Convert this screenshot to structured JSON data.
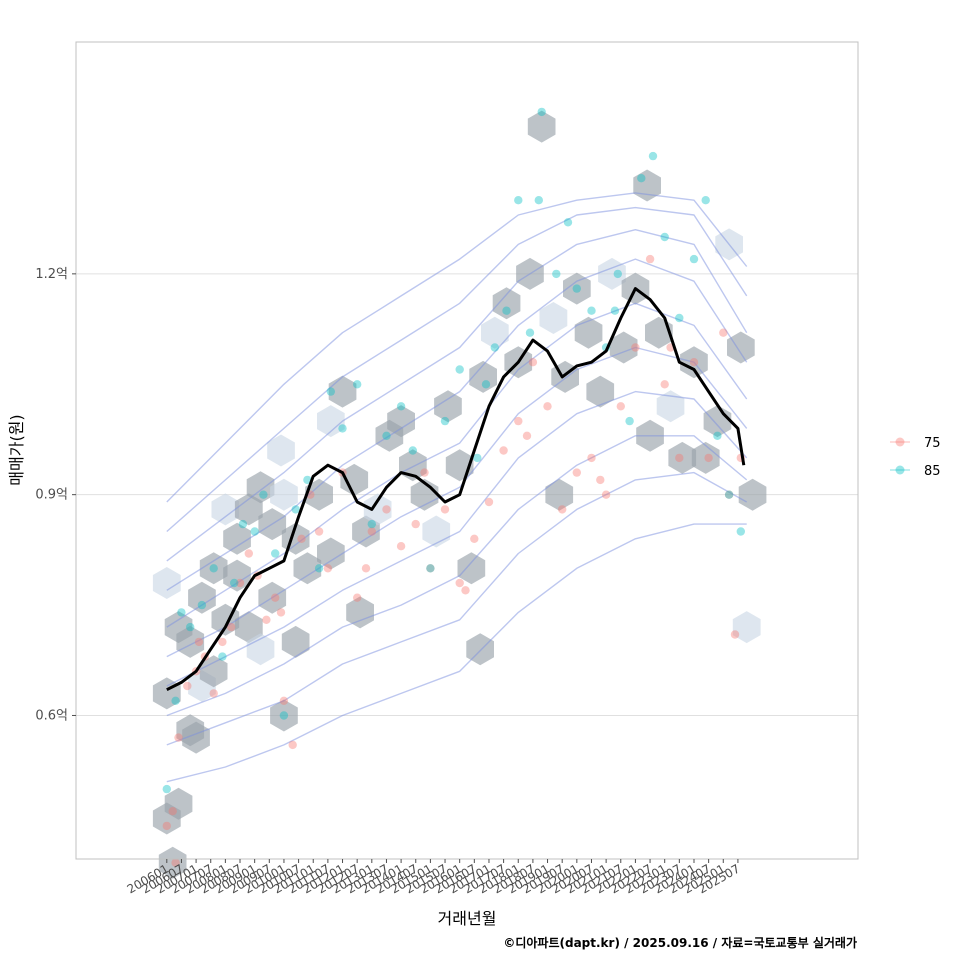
{
  "chart_data": {
    "type": "scatter",
    "title": "",
    "xlabel": "거래년월",
    "ylabel": "매매가(원)",
    "caption": "©디아파트(dapt.kr) / 2025.09.16 / 자료=국토교통부 실거래가",
    "y_ticks": [
      {
        "value": 0.6,
        "label": "0.6억"
      },
      {
        "value": 0.9,
        "label": "0.9억"
      },
      {
        "value": 1.2,
        "label": "1.2억"
      }
    ],
    "ylim": [
      0.405,
      1.515
    ],
    "xlim": [
      2002.9,
      2029.6
    ],
    "x_tick_labels": [
      "200601",
      "200607",
      "200701",
      "200707",
      "200801",
      "200807",
      "200901",
      "200907",
      "201001",
      "201007",
      "201101",
      "201107",
      "201201",
      "201207",
      "201301",
      "201307",
      "201401",
      "201407",
      "201501",
      "201507",
      "201601",
      "201607",
      "201701",
      "201707",
      "201801",
      "201807",
      "201901",
      "201907",
      "202001",
      "202007",
      "202101",
      "202107",
      "202201",
      "202207",
      "202301",
      "202307",
      "202401",
      "202407",
      "202501",
      "202507"
    ],
    "legend": {
      "title": "",
      "position": "right",
      "entries": [
        {
          "label": "75",
          "color": "#F8766D"
        },
        {
          "label": "85",
          "color": "#00BFC4"
        }
      ]
    },
    "series_75": {
      "name": "75",
      "x": [
        2006.0,
        2006.2,
        2006.4,
        2006.7,
        2007.0,
        2007.3,
        2007.6,
        2007.9,
        2008.2,
        2008.5,
        2008.8,
        2009.1,
        2009.4,
        2009.7,
        2010.0,
        2010.3,
        2010.6,
        2010.9,
        2011.2,
        2011.5,
        2012.0,
        2012.5,
        2013.0,
        2013.5,
        2014.0,
        2014.5,
        2015.0,
        2015.5,
        2016.0,
        2016.5,
        2017.0,
        2017.5,
        2018.0,
        2018.5,
        2019.0,
        2019.5,
        2020.0,
        2020.5,
        2021.0,
        2021.5,
        2022.0,
        2022.5,
        2023.0,
        2023.5,
        2024.0,
        2024.5,
        2025.0,
        2025.4,
        2025.6,
        2006.3,
        2007.1,
        2009.9,
        2012.8,
        2014.8,
        2016.2,
        2018.3,
        2020.8,
        2023.2,
        2025.2
      ],
      "y": [
        0.45,
        0.47,
        0.57,
        0.64,
        0.66,
        0.68,
        0.63,
        0.7,
        0.72,
        0.78,
        0.82,
        0.79,
        0.73,
        0.76,
        0.62,
        0.56,
        0.84,
        0.9,
        0.85,
        0.8,
        0.93,
        0.76,
        0.85,
        0.88,
        0.83,
        0.86,
        0.8,
        0.88,
        0.78,
        0.84,
        0.89,
        0.96,
        1.0,
        1.08,
        1.02,
        0.88,
        0.93,
        0.95,
        0.9,
        1.02,
        1.1,
        1.22,
        1.05,
        0.95,
        1.08,
        0.95,
        1.12,
        0.71,
        0.95,
        0.4,
        0.7,
        0.74,
        0.8,
        0.93,
        0.77,
        0.98,
        0.92,
        1.1,
        0.9
      ]
    },
    "series_85": {
      "name": "85",
      "x": [
        2006.0,
        2006.3,
        2006.5,
        2006.8,
        2007.2,
        2007.6,
        2007.9,
        2008.3,
        2008.6,
        2009.0,
        2009.3,
        2009.7,
        2010.0,
        2010.4,
        2010.8,
        2011.2,
        2011.6,
        2012.0,
        2012.5,
        2013.0,
        2013.5,
        2014.0,
        2014.4,
        2015.0,
        2015.5,
        2016.0,
        2016.6,
        2017.2,
        2017.6,
        2018.0,
        2018.4,
        2018.8,
        2019.3,
        2019.7,
        2020.0,
        2020.5,
        2021.0,
        2021.4,
        2021.8,
        2022.2,
        2022.6,
        2023.0,
        2023.5,
        2024.0,
        2024.4,
        2024.8,
        2025.2,
        2025.6,
        2018.7,
        2021.3,
        2016.9
      ],
      "y": [
        0.5,
        0.62,
        0.74,
        0.72,
        0.75,
        0.8,
        0.68,
        0.78,
        0.86,
        0.85,
        0.9,
        0.82,
        0.6,
        0.88,
        0.92,
        0.8,
        1.04,
        0.99,
        1.05,
        0.86,
        0.98,
        1.02,
        0.96,
        0.8,
        1.0,
        1.07,
        0.95,
        1.1,
        1.15,
        1.3,
        1.12,
        1.42,
        1.2,
        1.27,
        1.18,
        1.15,
        1.1,
        1.2,
        1.0,
        1.33,
        1.36,
        1.25,
        1.14,
        1.22,
        1.3,
        0.98,
        0.9,
        0.85,
        1.3,
        1.15,
        1.05
      ]
    },
    "median_line": {
      "x": [
        2006.0,
        2006.5,
        2007.0,
        2007.5,
        2008.0,
        2008.5,
        2009.0,
        2009.5,
        2010.0,
        2010.5,
        2011.0,
        2011.5,
        2012.0,
        2012.5,
        2013.0,
        2013.5,
        2014.0,
        2014.5,
        2015.0,
        2015.5,
        2016.0,
        2016.5,
        2017.0,
        2017.5,
        2018.0,
        2018.5,
        2019.0,
        2019.5,
        2020.0,
        2020.5,
        2021.0,
        2021.5,
        2022.0,
        2022.5,
        2023.0,
        2023.5,
        2024.0,
        2024.5,
        2025.0,
        2025.5,
        2025.7
      ],
      "y": [
        0.635,
        0.645,
        0.66,
        0.69,
        0.72,
        0.76,
        0.79,
        0.8,
        0.81,
        0.87,
        0.925,
        0.94,
        0.93,
        0.89,
        0.88,
        0.91,
        0.93,
        0.925,
        0.91,
        0.89,
        0.9,
        0.96,
        1.02,
        1.06,
        1.08,
        1.11,
        1.095,
        1.06,
        1.075,
        1.08,
        1.095,
        1.14,
        1.18,
        1.165,
        1.14,
        1.08,
        1.07,
        1.04,
        1.01,
        0.99,
        0.94
      ]
    },
    "hex_bins": {
      "x": [
        2006.0,
        2006.0,
        2006.0,
        2006.4,
        2006.4,
        2006.8,
        2006.8,
        2007.2,
        2007.2,
        2007.6,
        2007.6,
        2008.0,
        2008.0,
        2008.4,
        2008.4,
        2008.8,
        2008.8,
        2009.2,
        2009.2,
        2009.6,
        2009.6,
        2010.0,
        2010.0,
        2010.4,
        2010.4,
        2010.8,
        2011.2,
        2011.6,
        2011.6,
        2012.0,
        2012.4,
        2012.8,
        2013.2,
        2013.6,
        2014.0,
        2014.4,
        2014.8,
        2015.2,
        2015.6,
        2016.0,
        2016.4,
        2016.8,
        2017.2,
        2017.6,
        2018.0,
        2018.4,
        2018.8,
        2019.2,
        2019.6,
        2020.0,
        2020.4,
        2020.8,
        2021.2,
        2021.6,
        2022.0,
        2022.4,
        2022.8,
        2023.2,
        2023.6,
        2024.0,
        2024.4,
        2024.8,
        2025.2,
        2025.6,
        2026.0,
        2006.2,
        2007.0,
        2009.9,
        2012.6,
        2016.7,
        2019.4,
        2022.5,
        2025.8
      ],
      "y": [
        0.46,
        0.63,
        0.78,
        0.48,
        0.72,
        0.58,
        0.7,
        0.64,
        0.76,
        0.66,
        0.8,
        0.73,
        0.88,
        0.79,
        0.84,
        0.72,
        0.88,
        0.69,
        0.91,
        0.76,
        0.86,
        0.6,
        0.9,
        0.84,
        0.7,
        0.8,
        0.9,
        1.0,
        0.82,
        1.04,
        0.92,
        0.85,
        0.88,
        0.98,
        1.0,
        0.94,
        0.9,
        0.85,
        1.02,
        0.94,
        0.8,
        1.06,
        1.12,
        1.16,
        1.08,
        1.2,
        1.4,
        1.14,
        1.06,
        1.18,
        1.12,
        1.04,
        1.2,
        1.1,
        1.18,
        1.32,
        1.12,
        1.02,
        0.95,
        1.08,
        0.95,
        1.0,
        1.24,
        1.1,
        0.9,
        0.4,
        0.57,
        0.96,
        0.74,
        0.69,
        0.9,
        0.98,
        0.72
      ]
    },
    "density_contours": {
      "x": [
        2006.0,
        2008.0,
        2010.0,
        2012.0,
        2014.0,
        2016.0,
        2018.0,
        2020.0,
        2022.0,
        2024.0,
        2025.8
      ],
      "levels": [
        [
          0.51,
          0.53,
          0.56,
          0.6,
          0.63,
          0.66,
          0.74,
          0.8,
          0.84,
          0.86,
          0.86
        ],
        [
          0.56,
          0.59,
          0.62,
          0.67,
          0.7,
          0.73,
          0.82,
          0.88,
          0.92,
          0.93,
          0.89
        ],
        [
          0.6,
          0.63,
          0.67,
          0.72,
          0.75,
          0.79,
          0.88,
          0.94,
          0.98,
          0.98,
          0.92
        ],
        [
          0.64,
          0.68,
          0.72,
          0.77,
          0.81,
          0.85,
          0.95,
          1.01,
          1.04,
          1.03,
          0.95
        ],
        [
          0.68,
          0.72,
          0.77,
          0.82,
          0.87,
          0.91,
          1.01,
          1.07,
          1.1,
          1.08,
          0.99
        ],
        [
          0.72,
          0.77,
          0.82,
          0.88,
          0.93,
          0.97,
          1.07,
          1.13,
          1.16,
          1.13,
          1.03
        ],
        [
          0.77,
          0.82,
          0.87,
          0.94,
          0.99,
          1.04,
          1.13,
          1.19,
          1.22,
          1.19,
          1.08
        ],
        [
          0.81,
          0.87,
          0.93,
          1.0,
          1.05,
          1.1,
          1.19,
          1.24,
          1.26,
          1.24,
          1.12
        ],
        [
          0.85,
          0.92,
          0.99,
          1.06,
          1.11,
          1.16,
          1.24,
          1.28,
          1.29,
          1.28,
          1.17
        ],
        [
          0.89,
          0.97,
          1.05,
          1.12,
          1.17,
          1.22,
          1.28,
          1.3,
          1.31,
          1.3,
          1.21
        ]
      ]
    }
  },
  "colors": {
    "hex_fill": "#9aa3ab",
    "hex_fill_light": "#c8d6e5",
    "contour": "#7b8fe0",
    "median": "#000000",
    "grid": "#e0e0e0",
    "panel_border": "#c0c0c0"
  }
}
